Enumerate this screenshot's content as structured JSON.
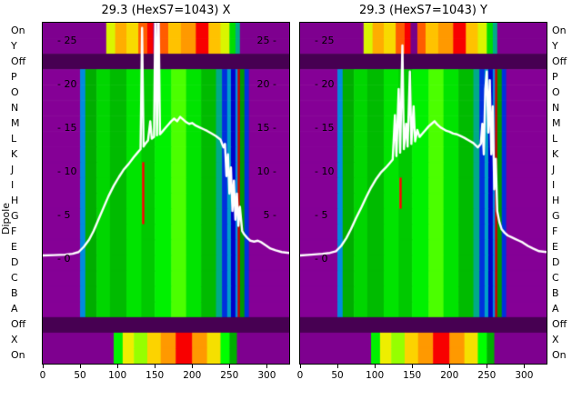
{
  "figure": {
    "background": "#ffffff",
    "overlay_line_color": "#ffffff"
  },
  "y_axis_label": "Dipole",
  "dipole_labels": [
    "On",
    "Y",
    "Off",
    "P",
    "O",
    "N",
    "M",
    "L",
    "K",
    "J",
    "I",
    "H",
    "G",
    "F",
    "E",
    "D",
    "C",
    "B",
    "A",
    "Off",
    "X",
    "On"
  ],
  "heatmap_row_types": {
    "off_band": [
      [
        0,
        330,
        0.03
      ]
    ],
    "top_hot": [
      [
        0,
        85,
        0.07
      ],
      [
        85,
        97,
        0.68
      ],
      [
        97,
        112,
        0.78
      ],
      [
        112,
        128,
        0.73
      ],
      [
        128,
        140,
        0.82
      ],
      [
        140,
        148,
        0.86
      ],
      [
        148,
        157,
        0.05
      ],
      [
        157,
        168,
        0.82
      ],
      [
        168,
        185,
        0.76
      ],
      [
        185,
        205,
        0.8
      ],
      [
        205,
        222,
        0.86
      ],
      [
        222,
        238,
        0.76
      ],
      [
        238,
        250,
        0.68
      ],
      [
        250,
        258,
        0.55
      ],
      [
        258,
        264,
        0.4
      ],
      [
        264,
        330,
        0.07
      ]
    ],
    "main": [
      [
        0,
        50,
        0.09
      ],
      [
        50,
        57,
        0.28
      ],
      [
        57,
        72,
        0.48
      ],
      [
        72,
        90,
        0.54
      ],
      [
        90,
        112,
        0.5
      ],
      [
        112,
        132,
        0.56
      ],
      [
        132,
        150,
        0.52
      ],
      [
        150,
        172,
        0.58
      ],
      [
        172,
        192,
        0.62
      ],
      [
        192,
        212,
        0.56
      ],
      [
        212,
        232,
        0.5
      ],
      [
        232,
        240,
        0.4
      ],
      [
        240,
        247,
        0.22
      ],
      [
        247,
        252,
        0.32
      ],
      [
        252,
        258,
        0.18
      ],
      [
        258,
        261,
        0.28
      ],
      [
        261,
        264,
        0.95
      ],
      [
        264,
        270,
        0.45
      ],
      [
        270,
        276,
        0.22
      ],
      [
        276,
        330,
        0.09
      ]
    ],
    "main_mark": [
      [
        0,
        50,
        0.09
      ],
      [
        50,
        57,
        0.28
      ],
      [
        57,
        72,
        0.48
      ],
      [
        72,
        90,
        0.54
      ],
      [
        90,
        112,
        0.5
      ],
      [
        112,
        133,
        0.56
      ],
      [
        133,
        136,
        0.85
      ],
      [
        136,
        150,
        0.52
      ],
      [
        150,
        172,
        0.58
      ],
      [
        172,
        192,
        0.62
      ],
      [
        192,
        212,
        0.56
      ],
      [
        212,
        232,
        0.5
      ],
      [
        232,
        240,
        0.4
      ],
      [
        240,
        247,
        0.22
      ],
      [
        247,
        252,
        0.32
      ],
      [
        252,
        258,
        0.18
      ],
      [
        258,
        261,
        0.28
      ],
      [
        261,
        264,
        0.95
      ],
      [
        264,
        270,
        0.45
      ],
      [
        270,
        276,
        0.22
      ],
      [
        276,
        330,
        0.09
      ]
    ],
    "bot_hot": [
      [
        0,
        95,
        0.07
      ],
      [
        95,
        107,
        0.58
      ],
      [
        107,
        122,
        0.7
      ],
      [
        122,
        140,
        0.64
      ],
      [
        140,
        158,
        0.74
      ],
      [
        158,
        178,
        0.8
      ],
      [
        178,
        200,
        0.86
      ],
      [
        200,
        220,
        0.8
      ],
      [
        220,
        238,
        0.72
      ],
      [
        238,
        250,
        0.6
      ],
      [
        250,
        260,
        0.48
      ],
      [
        260,
        330,
        0.07
      ]
    ]
  },
  "chart_data": [
    {
      "type": "heatmap",
      "title": "29.3 (HexS7=1043) X",
      "colormap": "nipy_spectral",
      "x_range": [
        0,
        330
      ],
      "x_ticks": [
        0,
        50,
        100,
        150,
        200,
        250,
        300
      ],
      "inner_ticks_left": [
        "25",
        "20",
        "15",
        "10",
        "5",
        "0"
      ],
      "inner_ticks_right": [
        "25",
        "20",
        "15",
        "10",
        "5"
      ],
      "line_axis": {
        "min": -12,
        "max": 27.1
      },
      "rows": [
        "top_hot",
        "top_hot",
        "off_band",
        "main",
        "main",
        "main",
        "main",
        "main",
        "main",
        "main_mark",
        "main_mark",
        "main_mark",
        "main_mark",
        "main",
        "main",
        "main",
        "main",
        "main",
        "main",
        "off_band",
        "bot_hot",
        "bot_hot"
      ],
      "line": [
        [
          0,
          0.4
        ],
        [
          15,
          0.45
        ],
        [
          30,
          0.5
        ],
        [
          40,
          0.6
        ],
        [
          48,
          0.8
        ],
        [
          55,
          1.4
        ],
        [
          62,
          2.2
        ],
        [
          68,
          3.2
        ],
        [
          75,
          4.6
        ],
        [
          82,
          6
        ],
        [
          88,
          7.2
        ],
        [
          95,
          8.4
        ],
        [
          102,
          9.4
        ],
        [
          108,
          10.2
        ],
        [
          115,
          10.9
        ],
        [
          122,
          11.7
        ],
        [
          127,
          12.2
        ],
        [
          131,
          12.6
        ],
        [
          133,
          26.5
        ],
        [
          135,
          12.9
        ],
        [
          138,
          13.3
        ],
        [
          141,
          13.6
        ],
        [
          144,
          15.8
        ],
        [
          146,
          13.8
        ],
        [
          149,
          14
        ],
        [
          151,
          30
        ],
        [
          153,
          14.2
        ],
        [
          155,
          29
        ],
        [
          157,
          14.3
        ],
        [
          160,
          14.6
        ],
        [
          164,
          15
        ],
        [
          168,
          15.4
        ],
        [
          172,
          15.8
        ],
        [
          176,
          16.1
        ],
        [
          180,
          15.8
        ],
        [
          184,
          16.3
        ],
        [
          188,
          16
        ],
        [
          192,
          15.7
        ],
        [
          196,
          15.5
        ],
        [
          200,
          15.6
        ],
        [
          205,
          15.3
        ],
        [
          210,
          15.1
        ],
        [
          215,
          14.9
        ],
        [
          220,
          14.7
        ],
        [
          226,
          14.4
        ],
        [
          232,
          14.1
        ],
        [
          238,
          13.7
        ],
        [
          242,
          12.8
        ],
        [
          244,
          13.2
        ],
        [
          246,
          9.5
        ],
        [
          248,
          12
        ],
        [
          250,
          7.5
        ],
        [
          252,
          10.5
        ],
        [
          254,
          5.5
        ],
        [
          256,
          9
        ],
        [
          258,
          4.5
        ],
        [
          260,
          7.5
        ],
        [
          262,
          3.8
        ],
        [
          264,
          6
        ],
        [
          267,
          3.2
        ],
        [
          270,
          2.8
        ],
        [
          274,
          2.4
        ],
        [
          278,
          2.1
        ],
        [
          283,
          2
        ],
        [
          288,
          2.1
        ],
        [
          293,
          1.9
        ],
        [
          298,
          1.6
        ],
        [
          305,
          1.2
        ],
        [
          312,
          1
        ],
        [
          320,
          0.8
        ],
        [
          330,
          0.7
        ]
      ]
    },
    {
      "type": "heatmap",
      "title": "29.3 (HexS7=1043) Y",
      "colormap": "nipy_spectral",
      "x_range": [
        0,
        330
      ],
      "x_ticks": [
        0,
        50,
        100,
        150,
        200,
        250,
        300
      ],
      "inner_ticks_left": [
        "25",
        "20",
        "15",
        "10",
        "5",
        "0"
      ],
      "inner_ticks_right": [],
      "line_axis": {
        "min": -12,
        "max": 27.1
      },
      "rows": [
        "top_hot",
        "top_hot",
        "off_band",
        "main",
        "main",
        "main",
        "main",
        "main",
        "main",
        "main",
        "main_mark",
        "main_mark",
        "main",
        "main",
        "main",
        "main",
        "main",
        "main",
        "main",
        "off_band",
        "bot_hot",
        "bot_hot"
      ],
      "line": [
        [
          0,
          0.4
        ],
        [
          15,
          0.5
        ],
        [
          30,
          0.6
        ],
        [
          40,
          0.7
        ],
        [
          48,
          0.9
        ],
        [
          55,
          1.5
        ],
        [
          62,
          2.4
        ],
        [
          68,
          3.4
        ],
        [
          75,
          4.7
        ],
        [
          82,
          5.9
        ],
        [
          88,
          7
        ],
        [
          95,
          8.2
        ],
        [
          102,
          9.2
        ],
        [
          108,
          9.9
        ],
        [
          115,
          10.5
        ],
        [
          120,
          11
        ],
        [
          124,
          11.4
        ],
        [
          127,
          16.5
        ],
        [
          129,
          11.8
        ],
        [
          132,
          19.5
        ],
        [
          134,
          12.2
        ],
        [
          137,
          24.5
        ],
        [
          139,
          12.6
        ],
        [
          142,
          15.5
        ],
        [
          144,
          12.9
        ],
        [
          147,
          21.5
        ],
        [
          149,
          13.2
        ],
        [
          152,
          17.5
        ],
        [
          154,
          13.5
        ],
        [
          157,
          14.8
        ],
        [
          160,
          14
        ],
        [
          164,
          14.4
        ],
        [
          168,
          14.8
        ],
        [
          172,
          15.2
        ],
        [
          176,
          15.5
        ],
        [
          180,
          15.8
        ],
        [
          184,
          15.4
        ],
        [
          188,
          15.1
        ],
        [
          192,
          14.9
        ],
        [
          196,
          14.7
        ],
        [
          200,
          14.6
        ],
        [
          205,
          14.4
        ],
        [
          210,
          14.3
        ],
        [
          215,
          14.1
        ],
        [
          220,
          13.9
        ],
        [
          226,
          13.6
        ],
        [
          232,
          13.3
        ],
        [
          238,
          12.8
        ],
        [
          242,
          13.2
        ],
        [
          244,
          15.5
        ],
        [
          246,
          12
        ],
        [
          248,
          19.5
        ],
        [
          250,
          21.5
        ],
        [
          252,
          14.5
        ],
        [
          254,
          20.5
        ],
        [
          256,
          12
        ],
        [
          258,
          17.5
        ],
        [
          260,
          8
        ],
        [
          262,
          11.5
        ],
        [
          264,
          5.5
        ],
        [
          267,
          4.2
        ],
        [
          270,
          3.4
        ],
        [
          274,
          3
        ],
        [
          278,
          2.7
        ],
        [
          283,
          2.5
        ],
        [
          288,
          2.3
        ],
        [
          293,
          2.1
        ],
        [
          298,
          1.9
        ],
        [
          305,
          1.5
        ],
        [
          312,
          1.2
        ],
        [
          320,
          0.9
        ],
        [
          330,
          0.8
        ]
      ]
    }
  ]
}
